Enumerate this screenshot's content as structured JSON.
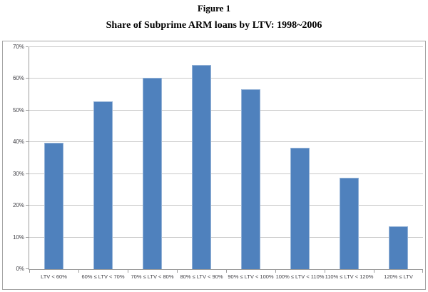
{
  "page": {
    "figure_label": "Figure 1",
    "title": "Share of Subprime ARM loans by LTV: 1998~2006"
  },
  "chart_data": {
    "type": "bar",
    "title": "Share of Subprime ARM loans by LTV: 1998~2006",
    "categories": [
      "LTV < 60%",
      "60% ≤ LTV < 70%",
      "70% ≤ LTV < 80%",
      "80% ≤ LTV < 90%",
      "90% ≤ LTV < 100%",
      "100% ≤ LTV < 110%",
      "110% ≤ LTV < 120%",
      "120% ≤ LTV"
    ],
    "values": [
      39.9,
      53.0,
      60.4,
      64.3,
      56.8,
      38.2,
      28.7,
      13.5
    ],
    "xlabel": "",
    "ylabel": "",
    "ylim": [
      0,
      70
    ],
    "ytick_step": 10,
    "ytick_labels": [
      "0%",
      "10%",
      "20%",
      "30%",
      "40%",
      "50%",
      "60%",
      "70%"
    ],
    "grid": true,
    "legend": "none",
    "colors": {
      "bar_fill": "#4f81bd",
      "bar_border": "#95b3d7",
      "gridline": "#c9c9c9",
      "axis_line": "#9c9c9c",
      "tick_label": "#404046",
      "chart_border": "#a6a6a6"
    }
  }
}
